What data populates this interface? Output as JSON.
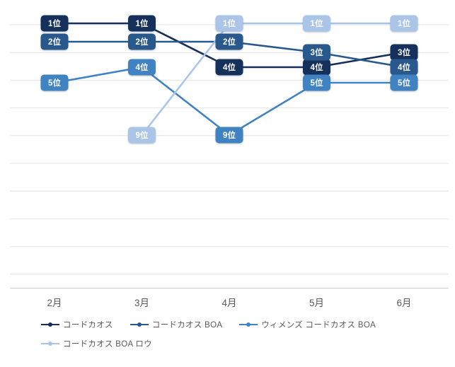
{
  "chart_data": {
    "type": "line",
    "subtype": "bump-ranking",
    "title": "",
    "xlabel": "",
    "ylabel": "",
    "categories": [
      "2月",
      "3月",
      "4月",
      "5月",
      "6月"
    ],
    "series": [
      {
        "name": "コードカオス",
        "color": "#16305C",
        "values": [
          1,
          1,
          4,
          4,
          3
        ]
      },
      {
        "name": "コードカオス BOA",
        "color": "#29598C",
        "values": [
          2,
          2,
          2,
          3,
          4
        ]
      },
      {
        "name": "ウィメンズ コードカオス BOA",
        "color": "#4183C2",
        "values": [
          5,
          4,
          9,
          5,
          5
        ]
      },
      {
        "name": "コードカオス BOA ロウ",
        "color": "#ABC5E8",
        "values": [
          null,
          9,
          1,
          1,
          1
        ]
      }
    ],
    "point_label_suffix": "位",
    "y_axis": {
      "reversed": true,
      "unit": "rank",
      "gridline_ranks": [
        1,
        3,
        5,
        7,
        9,
        11,
        13,
        15,
        17,
        19
      ]
    },
    "grid": true,
    "legend_position": "bottom-left",
    "legend_rows": [
      [
        0,
        1,
        2
      ],
      [
        3
      ]
    ],
    "colors": {
      "background": "#ffffff",
      "gridline": "#e4e4e4",
      "axis_line": "#cccccc",
      "axis_text": "#595959",
      "point_text": "#ffffff"
    }
  }
}
